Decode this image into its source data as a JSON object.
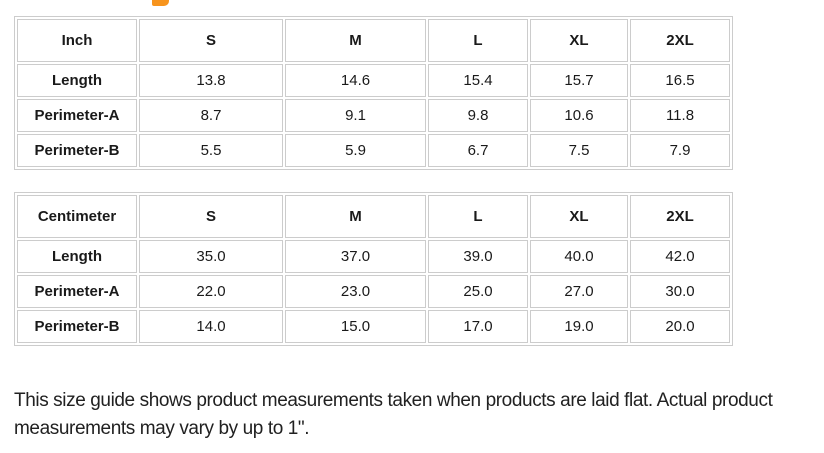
{
  "heading_fragment": {
    "description": "bottom sliver of cut-off orange heading letter",
    "color": "#f7941d"
  },
  "tables": [
    {
      "header": [
        "Inch",
        "S",
        "M",
        "L",
        "XL",
        "2XL"
      ],
      "rows": [
        [
          "Length",
          "13.8",
          "14.6",
          "15.4",
          "15.7",
          "16.5"
        ],
        [
          "Perimeter-A",
          "8.7",
          "9.1",
          "9.8",
          "10.6",
          "11.8"
        ],
        [
          "Perimeter-B",
          "5.5",
          "5.9",
          "6.7",
          "7.5",
          "7.9"
        ]
      ]
    },
    {
      "header": [
        "Centimeter",
        "S",
        "M",
        "L",
        "XL",
        "2XL"
      ],
      "rows": [
        [
          "Length",
          "35.0",
          "37.0",
          "39.0",
          "40.0",
          "42.0"
        ],
        [
          "Perimeter-A",
          "22.0",
          "23.0",
          "25.0",
          "27.0",
          "30.0"
        ],
        [
          "Perimeter-B",
          "14.0",
          "15.0",
          "17.0",
          "19.0",
          "20.0"
        ]
      ]
    }
  ],
  "note": {
    "text": "This size guide shows product measurements taken when products are laid flat. Actual product measurements may vary by up to 1\"."
  },
  "colors": {
    "table_border": "#cccccc",
    "table_text": "#1a1a1a",
    "note_text": "#212121",
    "accent_orange": "#f7941d"
  }
}
